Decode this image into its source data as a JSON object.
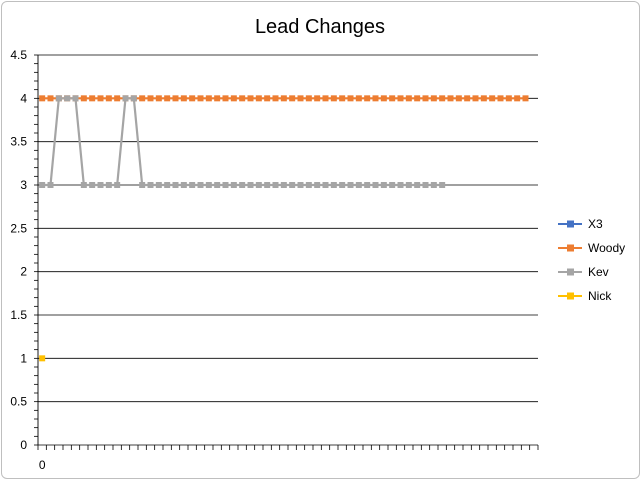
{
  "chart_data": {
    "type": "line",
    "title": "Lead Changes",
    "xlabel": "",
    "ylabel": "",
    "ylim": [
      0,
      4.5
    ],
    "y_ticks": [
      "0",
      "0.5",
      "1",
      "1.5",
      "2",
      "2.5",
      "3",
      "3.5",
      "4",
      "4.5"
    ],
    "y_tick_values": [
      0,
      0.5,
      1,
      1.5,
      2,
      2.5,
      3,
      3.5,
      4,
      4.5
    ],
    "x_tick_label": "0",
    "x_count": 60,
    "grid": true,
    "legend_position": "right",
    "series": [
      {
        "name": "X3",
        "color": "#4472C4",
        "values": []
      },
      {
        "name": "Woody",
        "color": "#ED7D31",
        "values": [
          4,
          4,
          4,
          4,
          4,
          4,
          4,
          4,
          4,
          4,
          4,
          4,
          4,
          4,
          4,
          4,
          4,
          4,
          4,
          4,
          4,
          4,
          4,
          4,
          4,
          4,
          4,
          4,
          4,
          4,
          4,
          4,
          4,
          4,
          4,
          4,
          4,
          4,
          4,
          4,
          4,
          4,
          4,
          4,
          4,
          4,
          4,
          4,
          4,
          4,
          4,
          4,
          4,
          4,
          4,
          4,
          4,
          4,
          4
        ]
      },
      {
        "name": "Kev",
        "color": "#A5A5A5",
        "values": [
          3,
          3,
          4,
          4,
          4,
          3,
          3,
          3,
          3,
          3,
          4,
          4,
          3,
          3,
          3,
          3,
          3,
          3,
          3,
          3,
          3,
          3,
          3,
          3,
          3,
          3,
          3,
          3,
          3,
          3,
          3,
          3,
          3,
          3,
          3,
          3,
          3,
          3,
          3,
          3,
          3,
          3,
          3,
          3,
          3,
          3,
          3,
          3,
          3
        ]
      },
      {
        "name": "Nick",
        "color": "#FFC000",
        "values": [
          1
        ]
      }
    ]
  }
}
